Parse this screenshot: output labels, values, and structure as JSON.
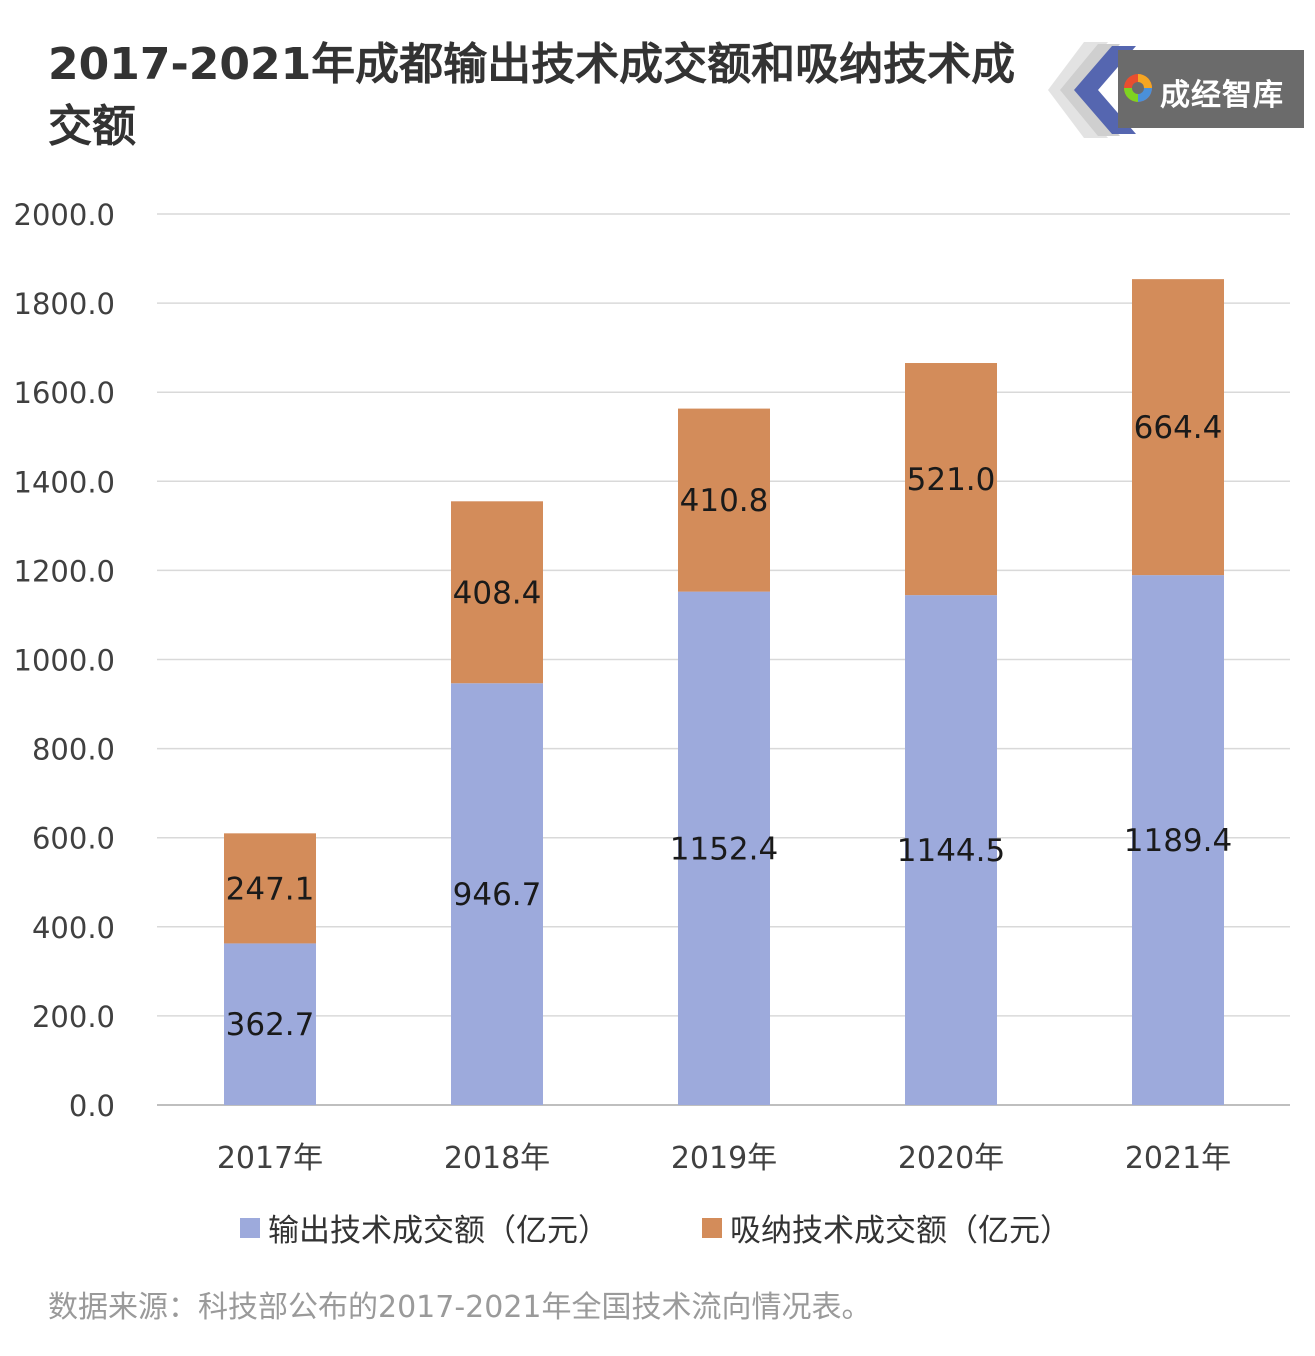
{
  "chart_data": {
    "type": "bar",
    "stacked": true,
    "title": "2017-2021年成都输出技术成交额和吸纳技术成交额",
    "categories": [
      "2017年",
      "2018年",
      "2019年",
      "2020年",
      "2021年"
    ],
    "series": [
      {
        "name": "输出技术成交额（亿元）",
        "values": [
          362.7,
          946.7,
          1152.4,
          1144.5,
          1189.4
        ],
        "color": "#9daadc"
      },
      {
        "name": "吸纳技术成交额（亿元）",
        "values": [
          247.1,
          408.4,
          410.8,
          521.0,
          664.4
        ],
        "color": "#d38c5a"
      }
    ],
    "value_labels": [
      [
        "362.7",
        "946.7",
        "1152.4",
        "1144.5",
        "1189.4"
      ],
      [
        "247.1",
        "408.4",
        "410.8",
        "521.0",
        "664.4"
      ]
    ],
    "y_ticks": [
      "0.0",
      "200.0",
      "400.0",
      "600.0",
      "800.0",
      "1000.0",
      "1200.0",
      "1400.0",
      "1600.0",
      "1800.0",
      "2000.0"
    ],
    "ylim": [
      0,
      2000
    ],
    "xlabel": "",
    "ylabel": "",
    "grid": true,
    "legend_position": "bottom"
  },
  "logo": {
    "text": "成经智库",
    "icon": "swirl-logo-icon"
  },
  "source": "数据来源：科技部公布的2017-2021年全国技术流向情况表。"
}
